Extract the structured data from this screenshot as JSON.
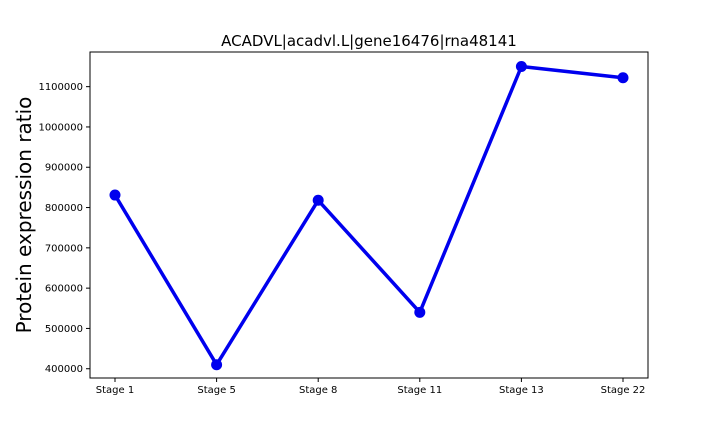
{
  "chart_data": {
    "type": "line",
    "title": "ACADVL|acadvl.L|gene16476|rna48141",
    "xlabel": "",
    "ylabel": "Protein expression ratio",
    "categories": [
      "Stage 1",
      "Stage 5",
      "Stage 8",
      "Stage 11",
      "Stage 13",
      "Stage 22"
    ],
    "series": [
      {
        "values": [
          831000,
          410000,
          818000,
          540000,
          1150000,
          1122000
        ],
        "color": "#0000ee"
      }
    ],
    "yticks": [
      400000,
      500000,
      600000,
      700000,
      800000,
      900000,
      1000000,
      1100000
    ],
    "ylim": [
      377000,
      1186000
    ],
    "grid": false,
    "legend": "none"
  }
}
